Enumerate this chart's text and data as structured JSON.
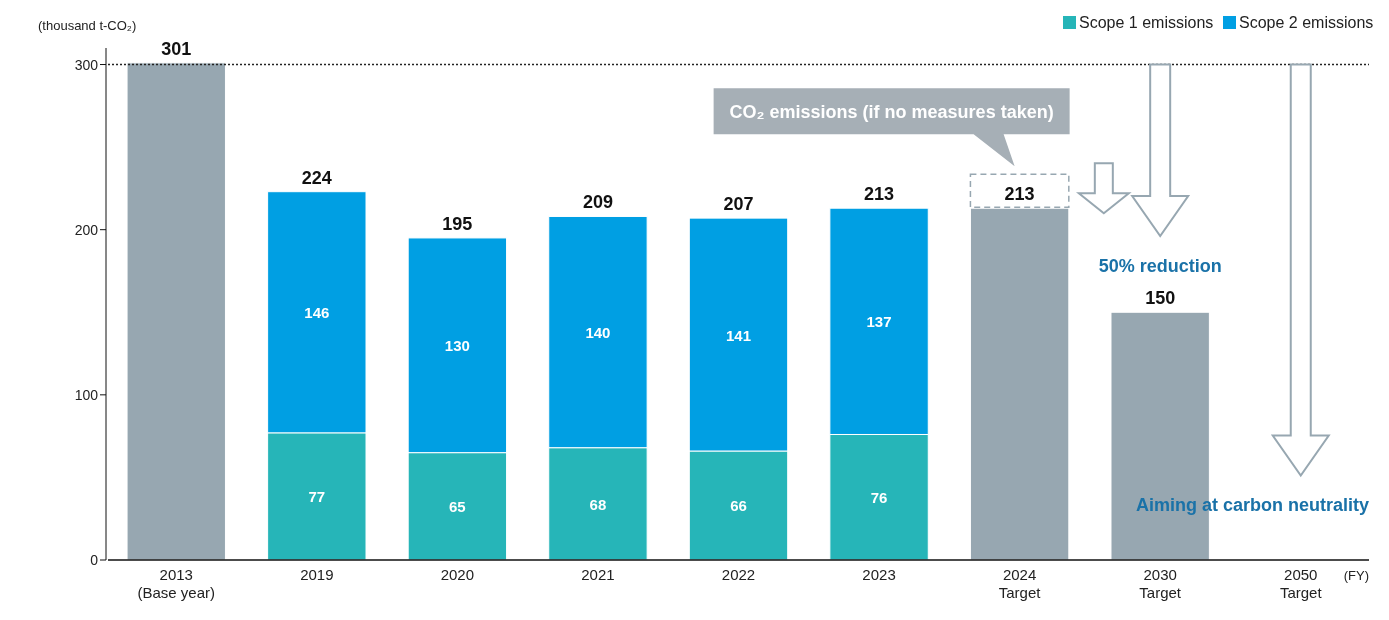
{
  "chart_data": {
    "type": "bar",
    "stacked": true,
    "categories": [
      "2013\n(Base year)",
      "2019",
      "2020",
      "2021",
      "2022",
      "2023",
      "2024\nTarget",
      "2030\nTarget",
      "2050\nTarget"
    ],
    "series": [
      {
        "color": "#97a7b1",
        "values": [
          301,
          null,
          null,
          null,
          null,
          null,
          213,
          150,
          null
        ]
      },
      {
        "name": "Scope 1 emissions",
        "color": "#26b5b8",
        "values": [
          null,
          77,
          65,
          68,
          66,
          76,
          null,
          null,
          null
        ]
      },
      {
        "name": "Scope 2 emissions",
        "color": "#009fe3",
        "values": [
          null,
          146,
          130,
          140,
          141,
          137,
          null,
          null,
          null
        ]
      }
    ],
    "totals": [
      null,
      "224",
      "195",
      "209",
      "207",
      "213",
      null,
      null,
      null
    ],
    "data_labels": true,
    "ylim": [
      0,
      310
    ],
    "yticks": [
      0,
      100,
      200,
      300
    ],
    "ylabel": "(thousand t-CO₂)",
    "xlabel": "(FY)",
    "ref_lines": [
      {
        "axis": "y",
        "value": 300,
        "line_style": "dotted",
        "color": "#222222"
      }
    ],
    "annotations": [
      "CO₂ emissions (if no measures taken)",
      "50% reduction",
      "Aiming at carbon neutrality"
    ],
    "legend": "top right",
    "grid": false
  }
}
